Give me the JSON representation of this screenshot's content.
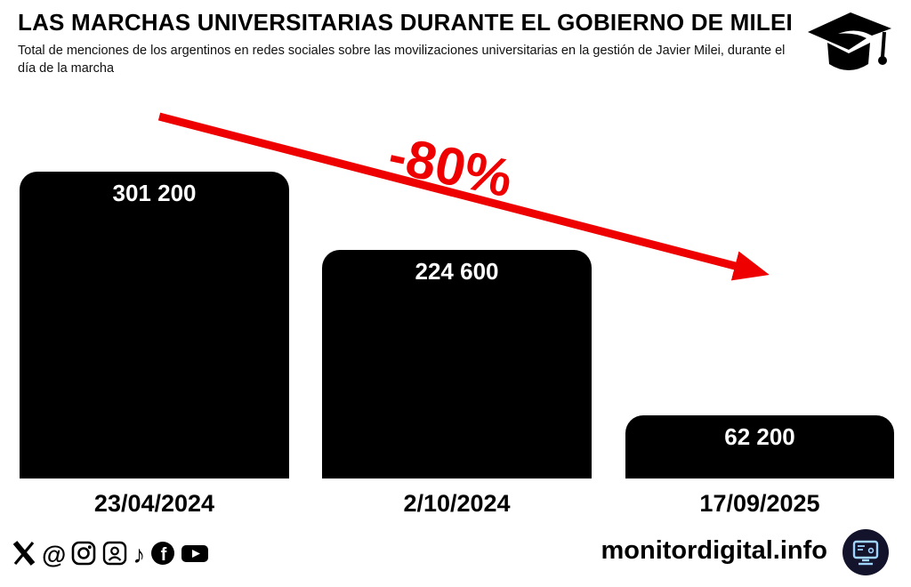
{
  "header": {
    "title": "LAS MARCHAS UNIVERSITARIAS DURANTE EL GOBIERNO DE MILEI",
    "subtitle": "Total de menciones de los argentinos en redes sociales sobre las movilizaciones universitarias en la gestión de Javier Milei, durante el día de la marcha"
  },
  "chart_data": {
    "type": "bar",
    "categories": [
      "23/04/2024",
      "2/10/2024",
      "17/09/2025"
    ],
    "values": [
      301200,
      224600,
      62200
    ],
    "value_labels": [
      "301 200",
      "224 600",
      "62 200"
    ],
    "annotation": "-80%",
    "bar_color": "#000000",
    "value_label_color": "#ffffff",
    "annotation_color": "#ee0000",
    "ylim": [
      0,
      301200
    ],
    "grid": false,
    "legend": false
  },
  "footer": {
    "site": "monitordigital.info",
    "social_icons": [
      "x",
      "threads",
      "instagram",
      "portrait",
      "tiktok",
      "facebook",
      "youtube"
    ],
    "icons": {
      "threads_glyph": "@",
      "tiktok_glyph": "♪",
      "facebook_letter": "f"
    }
  }
}
